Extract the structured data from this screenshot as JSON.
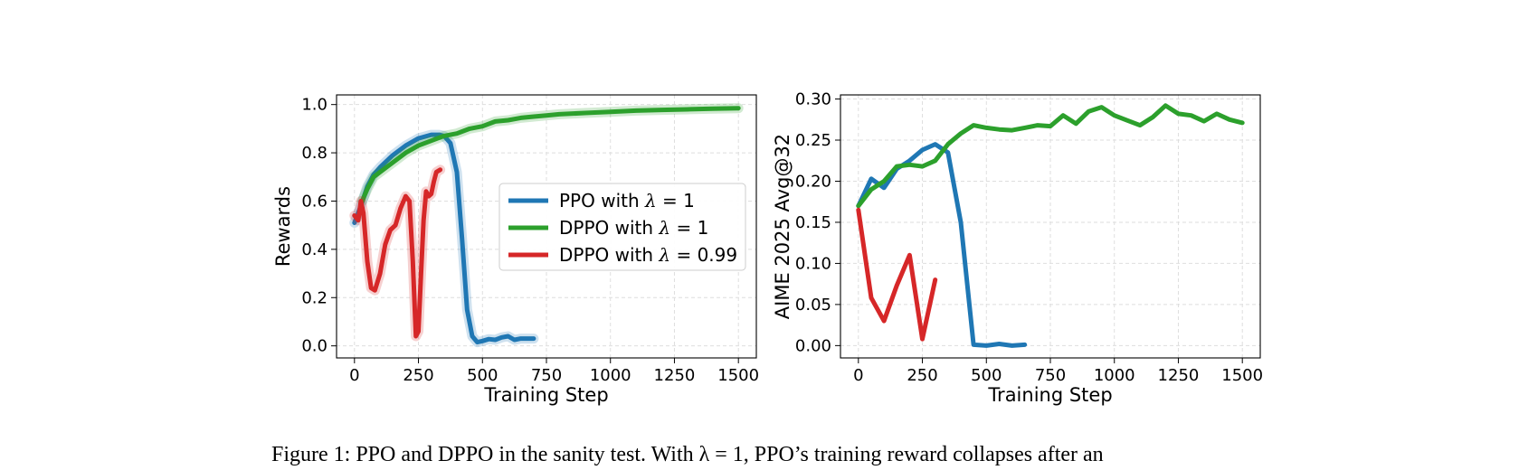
{
  "caption": "Figure 1: PPO and DPPO in the sanity test. With λ = 1, PPO’s training reward collapses after an",
  "colors": {
    "ppo": "#1f77b4",
    "dppo": "#2ca02c",
    "dppo099": "#d62728"
  },
  "chart_data": [
    {
      "type": "line",
      "title": "",
      "xlabel": "Training Step",
      "ylabel": "Rewards",
      "xlim": [
        -70,
        1570
      ],
      "ylim": [
        -0.05,
        1.04
      ],
      "xticks": [
        0,
        250,
        500,
        750,
        1000,
        1250,
        1500
      ],
      "yticks": [
        0.0,
        0.2,
        0.4,
        0.6,
        0.8,
        1.0
      ],
      "xtick_labels": [
        "0",
        "250",
        "500",
        "750",
        "1000",
        "1250",
        "1500"
      ],
      "ytick_labels": [
        "0.0",
        "0.2",
        "0.4",
        "0.6",
        "0.8",
        "1.0"
      ],
      "grid": true,
      "legend": "center-right",
      "series": [
        {
          "name": "PPO with λ = 1",
          "legend_prefix": "PPO with ",
          "legend_value": "1",
          "color": "#1f77b4",
          "x": [
            0,
            25,
            50,
            75,
            100,
            150,
            200,
            250,
            300,
            330,
            350,
            375,
            400,
            420,
            440,
            460,
            480,
            500,
            525,
            550,
            575,
            600,
            625,
            650,
            675,
            700
          ],
          "y": [
            0.51,
            0.58,
            0.66,
            0.71,
            0.74,
            0.79,
            0.83,
            0.86,
            0.875,
            0.875,
            0.87,
            0.84,
            0.72,
            0.45,
            0.15,
            0.04,
            0.015,
            0.02,
            0.028,
            0.025,
            0.035,
            0.04,
            0.025,
            0.03,
            0.03,
            0.03
          ]
        },
        {
          "name": "DPPO with λ = 1",
          "legend_prefix": "DPPO with ",
          "legend_value": "1",
          "color": "#2ca02c",
          "x": [
            30,
            50,
            75,
            100,
            150,
            200,
            250,
            300,
            350,
            400,
            450,
            500,
            550,
            600,
            650,
            700,
            750,
            800,
            900,
            1000,
            1100,
            1200,
            1300,
            1400,
            1500
          ],
          "y": [
            0.6,
            0.65,
            0.7,
            0.72,
            0.76,
            0.8,
            0.83,
            0.85,
            0.87,
            0.88,
            0.9,
            0.91,
            0.93,
            0.935,
            0.945,
            0.95,
            0.955,
            0.96,
            0.965,
            0.97,
            0.975,
            0.978,
            0.98,
            0.983,
            0.985
          ]
        },
        {
          "name": "DPPO with λ = 0.99",
          "legend_prefix": "DPPO with ",
          "legend_value": "0.99",
          "color": "#d62728",
          "x": [
            0,
            15,
            25,
            35,
            50,
            65,
            80,
            100,
            120,
            140,
            160,
            180,
            200,
            215,
            228,
            240,
            250,
            260,
            270,
            280,
            290,
            300,
            310,
            320,
            335
          ],
          "y": [
            0.54,
            0.52,
            0.6,
            0.55,
            0.35,
            0.24,
            0.23,
            0.3,
            0.42,
            0.48,
            0.5,
            0.57,
            0.62,
            0.6,
            0.35,
            0.04,
            0.06,
            0.3,
            0.52,
            0.64,
            0.62,
            0.63,
            0.68,
            0.72,
            0.73
          ]
        }
      ]
    },
    {
      "type": "line",
      "title": "",
      "xlabel": "Training Step",
      "ylabel": "AIME 2025 Avg@32",
      "xlim": [
        -70,
        1570
      ],
      "ylim": [
        -0.015,
        0.305
      ],
      "xticks": [
        0,
        250,
        500,
        750,
        1000,
        1250,
        1500
      ],
      "yticks": [
        0.0,
        0.05,
        0.1,
        0.15,
        0.2,
        0.25,
        0.3
      ],
      "xtick_labels": [
        "0",
        "250",
        "500",
        "750",
        "1000",
        "1250",
        "1500"
      ],
      "ytick_labels": [
        "0.00",
        "0.05",
        "0.10",
        "0.15",
        "0.20",
        "0.25",
        "0.30"
      ],
      "grid": true,
      "series": [
        {
          "name": "PPO with λ = 1",
          "color": "#1f77b4",
          "x": [
            0,
            50,
            100,
            150,
            200,
            250,
            300,
            350,
            400,
            450,
            500,
            550,
            600,
            650
          ],
          "y": [
            0.17,
            0.203,
            0.192,
            0.215,
            0.225,
            0.238,
            0.245,
            0.235,
            0.15,
            0.001,
            0.0,
            0.002,
            0.0,
            0.001
          ]
        },
        {
          "name": "DPPO with λ = 1",
          "color": "#2ca02c",
          "x": [
            0,
            50,
            100,
            150,
            200,
            250,
            300,
            350,
            400,
            450,
            500,
            550,
            600,
            650,
            700,
            750,
            800,
            850,
            900,
            950,
            1000,
            1050,
            1100,
            1150,
            1200,
            1250,
            1300,
            1350,
            1400,
            1450,
            1500
          ],
          "y": [
            0.17,
            0.19,
            0.2,
            0.218,
            0.22,
            0.218,
            0.225,
            0.245,
            0.258,
            0.268,
            0.265,
            0.263,
            0.262,
            0.265,
            0.268,
            0.267,
            0.28,
            0.27,
            0.285,
            0.29,
            0.28,
            0.274,
            0.268,
            0.278,
            0.292,
            0.282,
            0.28,
            0.273,
            0.282,
            0.275,
            0.271
          ]
        },
        {
          "name": "DPPO with λ = 0.99",
          "color": "#d62728",
          "x": [
            0,
            50,
            100,
            150,
            200,
            250,
            300
          ],
          "y": [
            0.165,
            0.058,
            0.03,
            0.073,
            0.11,
            0.008,
            0.08
          ]
        }
      ]
    }
  ]
}
